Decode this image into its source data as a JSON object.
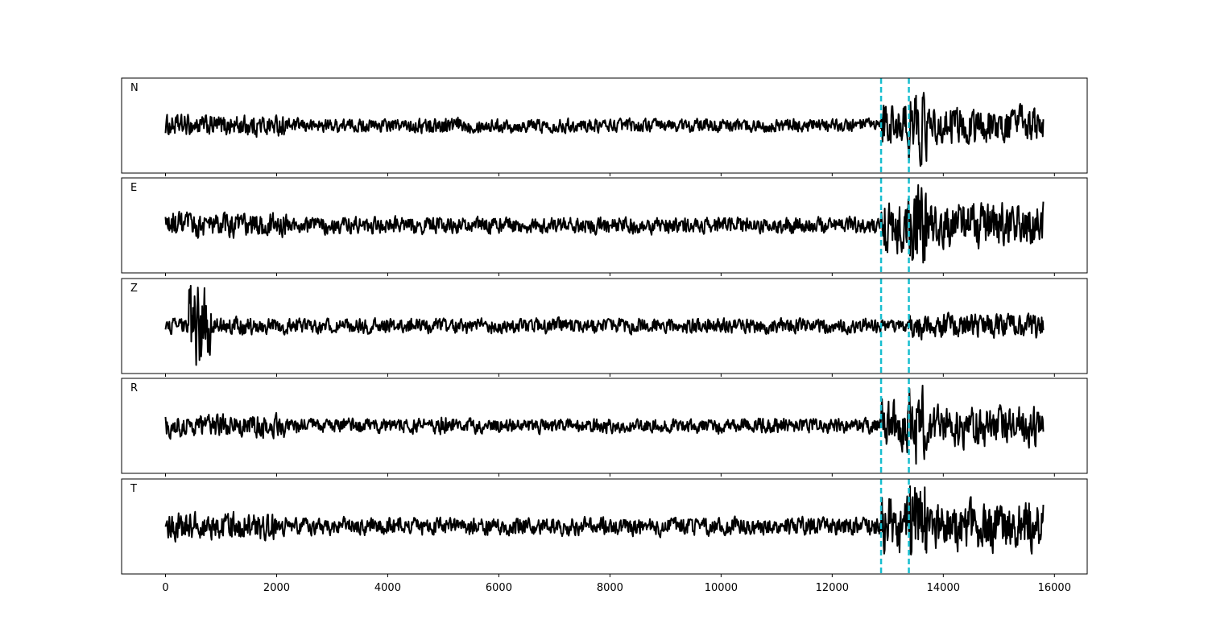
{
  "chart_data": {
    "type": "line",
    "title": "",
    "xlabel": "",
    "ylabel": "",
    "xlim": [
      -790,
      16590
    ],
    "x_ticks": [
      0,
      2000,
      4000,
      6000,
      8000,
      10000,
      12000,
      14000,
      16000
    ],
    "x_tick_labels": [
      "0",
      "2000",
      "4000",
      "6000",
      "8000",
      "10000",
      "12000",
      "14000",
      "16000"
    ],
    "x_range_of_traces": [
      0,
      15800
    ],
    "y_ticks_shown": false,
    "grid": false,
    "legend": "none",
    "colors": {
      "trace": "#000000",
      "marker": "#17becf",
      "frame": "#000000"
    },
    "markers": {
      "style": "dashed vertical lines",
      "x": [
        12880,
        13380
      ]
    },
    "panels": [
      {
        "label": "N",
        "amplitude_ratio": 0.85,
        "note": "waveform, strongest motion after x=12880"
      },
      {
        "label": "E",
        "amplitude_ratio": 0.85,
        "note": "waveform, strongest motion after x=12880"
      },
      {
        "label": "Z",
        "amplitude_ratio": 0.85,
        "note": "waveform, large burst near x=450-800"
      },
      {
        "label": "R",
        "amplitude_ratio": 0.85,
        "note": "waveform, strongest motion after x=12880"
      },
      {
        "label": "T",
        "amplitude_ratio": 0.85,
        "note": "waveform, strongest motion after x=12880"
      }
    ]
  }
}
